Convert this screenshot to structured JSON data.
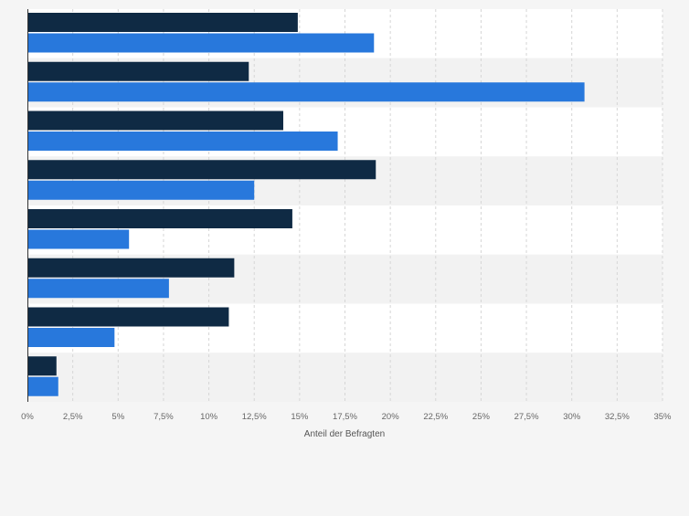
{
  "chart_data": {
    "type": "bar",
    "orientation": "horizontal",
    "xlabel": "Anteil der Befragten",
    "xlim": [
      0,
      35
    ],
    "xticks": [
      0,
      2.5,
      5,
      7.5,
      10,
      12.5,
      15,
      17.5,
      20,
      22.5,
      25,
      27.5,
      30,
      32.5,
      35
    ],
    "xtick_labels": [
      "0%",
      "2,5%",
      "5%",
      "7,5%",
      "10%",
      "12,5%",
      "15%",
      "17,5%",
      "20%",
      "22,5%",
      "25%",
      "27,5%",
      "30%",
      "32,5%",
      "35%"
    ],
    "grid": true,
    "series": [
      {
        "color": "#0f2a44",
        "values": [
          14.9,
          12.2,
          14.1,
          19.2,
          14.6,
          11.4,
          11.1,
          1.6
        ]
      },
      {
        "color": "#2878dc",
        "values": [
          19.1,
          30.7,
          17.1,
          12.5,
          5.6,
          7.8,
          4.8,
          1.7
        ]
      }
    ]
  }
}
